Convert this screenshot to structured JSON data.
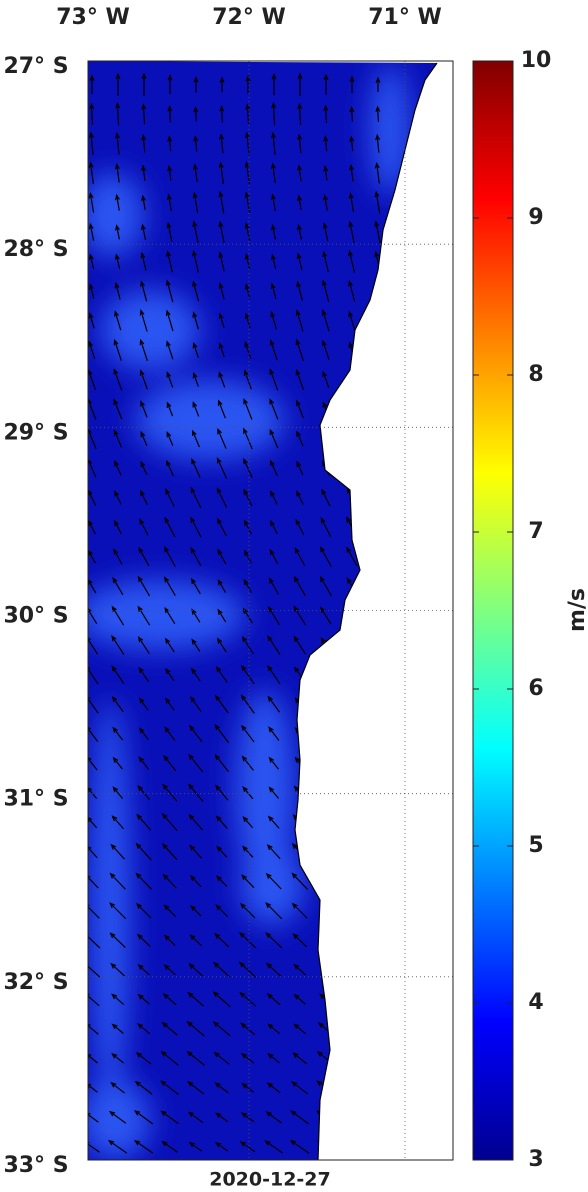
{
  "map": {
    "lon_labels": [
      "73° W",
      "72° W",
      "71° W"
    ],
    "lat_labels": [
      "27° S",
      "28° S",
      "29° S",
      "30° S",
      "31° S",
      "32° S",
      "33° S"
    ],
    "date": "2020-12-27"
  },
  "colorbar": {
    "lim": [
      3,
      10
    ],
    "ticks": [
      3,
      4,
      5,
      6,
      7,
      8,
      9,
      10
    ],
    "label": "m/s"
  }
}
